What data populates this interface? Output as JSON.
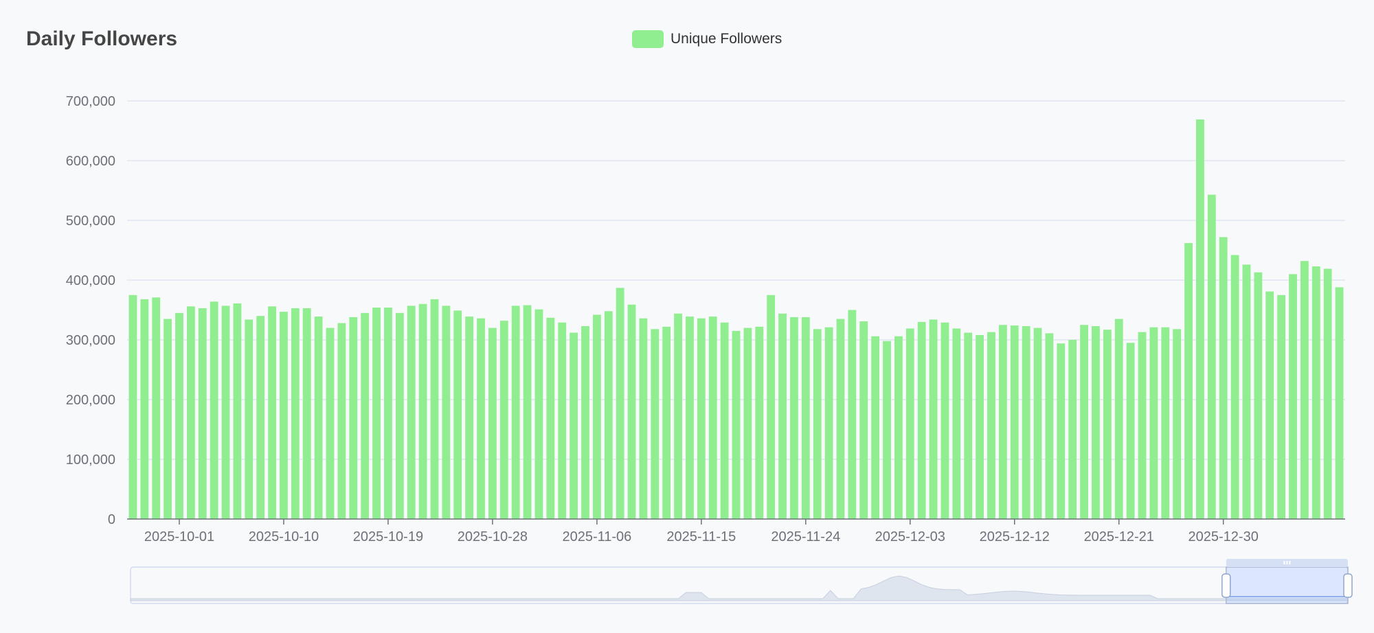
{
  "chart_data": {
    "type": "bar",
    "title": "Daily Followers",
    "xlabel": "",
    "ylabel": "",
    "ylim": [
      0,
      700000
    ],
    "yticks": [
      0,
      100000,
      200000,
      300000,
      400000,
      500000,
      600000,
      700000
    ],
    "ytick_labels": [
      "0",
      "100,000",
      "200,000",
      "300,000",
      "400,000",
      "500,000",
      "600,000",
      "700,000"
    ],
    "grid": true,
    "legend_position": "top-center",
    "color": "#90ee90",
    "x_range": [
      "2025-09-27",
      "2026-01-09"
    ],
    "xtick_labels": [
      "2025-10-01",
      "2025-10-10",
      "2025-10-19",
      "2025-10-28",
      "2025-11-06",
      "2025-11-15",
      "2025-11-24",
      "2025-12-03",
      "2025-12-12",
      "2025-12-21",
      "2025-12-30"
    ],
    "series": [
      {
        "name": "Unique Followers",
        "values": [
          375000,
          368000,
          371000,
          335000,
          345000,
          356000,
          353000,
          364000,
          357000,
          361000,
          334000,
          340000,
          356000,
          347000,
          353000,
          353000,
          339000,
          320000,
          328000,
          338000,
          345000,
          354000,
          354000,
          345000,
          357000,
          360000,
          368000,
          357000,
          349000,
          339000,
          336000,
          320000,
          332000,
          357000,
          358000,
          351000,
          337000,
          329000,
          312000,
          323000,
          342000,
          348000,
          387000,
          359000,
          336000,
          318000,
          322000,
          344000,
          339000,
          336000,
          339000,
          329000,
          315000,
          320000,
          322000,
          375000,
          344000,
          338000,
          338000,
          318000,
          321000,
          335000,
          350000,
          331000,
          306000,
          298000,
          306000,
          319000,
          330000,
          334000,
          329000,
          319000,
          312000,
          308000,
          313000,
          325000,
          324000,
          323000,
          320000,
          311000,
          294000,
          300000,
          325000,
          323000,
          317000,
          335000,
          295000,
          313000,
          321000,
          321000,
          318000,
          462000,
          669000,
          543000,
          472000,
          442000,
          426000,
          413000,
          381000,
          375000,
          410000,
          432000,
          423000,
          419000,
          388000
        ]
      }
    ]
  },
  "legend": {
    "label": "Unique Followers"
  },
  "data_zoom": {
    "start_fraction": 0.9,
    "end_fraction": 1.0
  }
}
